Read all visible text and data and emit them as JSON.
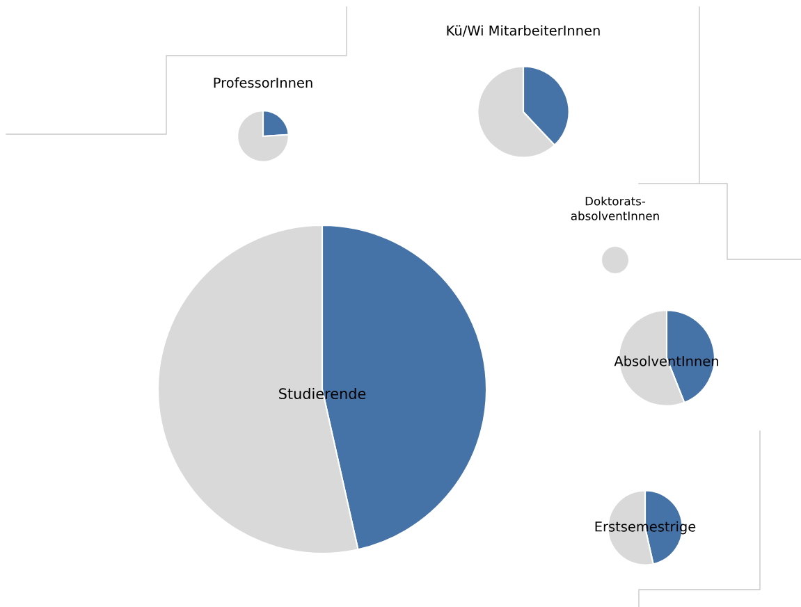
{
  "chart_data": [
    {
      "type": "pie",
      "title": "Studierende",
      "categories": [
        null,
        null
      ],
      "values": [
        46.5,
        53.5
      ],
      "colors": [
        "#4573a7",
        "#d9d9d9"
      ]
    },
    {
      "type": "pie",
      "title": "ProfessorInnen",
      "categories": [
        null,
        null
      ],
      "values": [
        24,
        76
      ],
      "colors": [
        "#4573a7",
        "#d9d9d9"
      ]
    },
    {
      "type": "pie",
      "title": "Kü/Wi MitarbeiterInnen",
      "categories": [
        null,
        null
      ],
      "values": [
        38,
        62
      ],
      "colors": [
        "#4573a7",
        "#d9d9d9"
      ]
    },
    {
      "type": "pie",
      "title": "Doktorats-\nabsolventInnen",
      "categories": [
        null,
        null
      ],
      "values": [
        null,
        100
      ],
      "colors": [
        "#4573a7",
        "#d9d9d9"
      ]
    },
    {
      "type": "pie",
      "title": "AbsolventInnen",
      "categories": [
        null,
        null
      ],
      "values": [
        44,
        56
      ],
      "colors": [
        "#4573a7",
        "#d9d9d9"
      ]
    },
    {
      "type": "pie",
      "title": "Erstsemestrige",
      "categories": [
        null,
        null
      ],
      "values": [
        46.5,
        53.5
      ],
      "colors": [
        "#4573a7",
        "#d9d9d9"
      ]
    }
  ]
}
